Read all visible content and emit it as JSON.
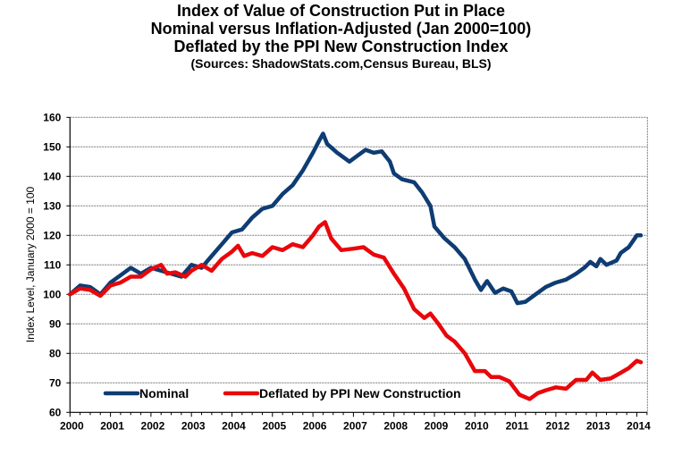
{
  "chart_data": {
    "type": "line",
    "title": "Index of Value of Construction Put in Place",
    "subtitle_lines": [
      "Nominal versus Inflation-Adjusted  (Jan 2000=100)",
      "Deflated by the PPI New Construction Index",
      "(Sources: ShadowStats.com,Census Bureau, BLS)"
    ],
    "xlabel": "",
    "ylabel": "Index Level, January 2000 = 100",
    "xlim": [
      2000,
      2014.25
    ],
    "ylim": [
      60,
      160
    ],
    "x_ticks": [
      "2000",
      "2001",
      "2002",
      "2003",
      "2004",
      "2005",
      "2006",
      "2007",
      "2008",
      "2009",
      "2010",
      "2011",
      "2012",
      "2013",
      "2014"
    ],
    "y_ticks": [
      "60",
      "70",
      "80",
      "90",
      "100",
      "110",
      "120",
      "130",
      "140",
      "150",
      "160"
    ],
    "grid": true,
    "legend_position": "bottom-left-inside",
    "series": [
      {
        "name": "Nominal",
        "color": "#0E3C73",
        "x": [
          2000.0,
          2000.25,
          2000.5,
          2000.75,
          2001.0,
          2001.25,
          2001.5,
          2001.75,
          2002.0,
          2002.25,
          2002.5,
          2002.75,
          2003.0,
          2003.25,
          2003.5,
          2003.75,
          2004.0,
          2004.25,
          2004.5,
          2004.75,
          2005.0,
          2005.25,
          2005.5,
          2005.75,
          2006.0,
          2006.15,
          2006.25,
          2006.35,
          2006.6,
          2006.9,
          2007.1,
          2007.3,
          2007.5,
          2007.7,
          2007.9,
          2008.0,
          2008.2,
          2008.5,
          2008.7,
          2008.9,
          2009.0,
          2009.25,
          2009.5,
          2009.75,
          2010.0,
          2010.15,
          2010.3,
          2010.5,
          2010.7,
          2010.9,
          2011.05,
          2011.25,
          2011.5,
          2011.75,
          2012.0,
          2012.25,
          2012.5,
          2012.7,
          2012.85,
          2013.0,
          2013.1,
          2013.25,
          2013.5,
          2013.6,
          2013.8,
          2014.0,
          2014.1
        ],
        "values": [
          100,
          103,
          102.5,
          100,
          104,
          106.5,
          109,
          107,
          109,
          108,
          107,
          106,
          110,
          109,
          113,
          117,
          121,
          122,
          126,
          129,
          130,
          134,
          137,
          142,
          148,
          152,
          154.5,
          151,
          148,
          145,
          147,
          149,
          148,
          148.5,
          145,
          141,
          139,
          138,
          134.5,
          130,
          123,
          119,
          116,
          112,
          105,
          101.5,
          104.5,
          100.5,
          102,
          101,
          97,
          97.5,
          100,
          102.5,
          104,
          105,
          107,
          109,
          111,
          109.5,
          112,
          110,
          111.5,
          114,
          116,
          120,
          120
        ]
      },
      {
        "name": "Deflated by PPI New Construction",
        "color": "#E8070B",
        "x": [
          2000.0,
          2000.25,
          2000.5,
          2000.75,
          2001.0,
          2001.25,
          2001.5,
          2001.75,
          2002.0,
          2002.25,
          2002.4,
          2002.6,
          2002.85,
          2003.0,
          2003.25,
          2003.5,
          2003.75,
          2004.0,
          2004.15,
          2004.3,
          2004.5,
          2004.75,
          2005.0,
          2005.25,
          2005.5,
          2005.75,
          2006.0,
          2006.15,
          2006.3,
          2006.45,
          2006.7,
          2007.0,
          2007.25,
          2007.5,
          2007.75,
          2008.0,
          2008.25,
          2008.5,
          2008.75,
          2008.9,
          2009.1,
          2009.3,
          2009.5,
          2009.75,
          2010.0,
          2010.25,
          2010.4,
          2010.6,
          2010.85,
          2011.1,
          2011.35,
          2011.55,
          2011.75,
          2012.0,
          2012.25,
          2012.5,
          2012.75,
          2012.9,
          2013.1,
          2013.35,
          2013.55,
          2013.8,
          2014.0,
          2014.1
        ],
        "values": [
          100,
          102,
          101.5,
          99.5,
          103,
          104,
          106,
          106,
          108.5,
          110,
          107,
          107.5,
          106,
          108,
          110,
          108,
          112,
          114.5,
          116.5,
          113,
          114,
          113,
          116,
          115,
          117,
          116,
          120,
          123,
          124.5,
          119,
          115,
          115.5,
          116,
          113.5,
          112.5,
          107,
          102,
          95,
          92,
          93.5,
          90,
          86,
          84,
          80,
          74,
          74,
          72,
          72,
          70.5,
          66,
          64.5,
          66.5,
          67.5,
          68.5,
          68,
          71,
          71,
          73.5,
          71,
          71.5,
          73,
          75,
          77.5,
          77
        ]
      }
    ]
  }
}
